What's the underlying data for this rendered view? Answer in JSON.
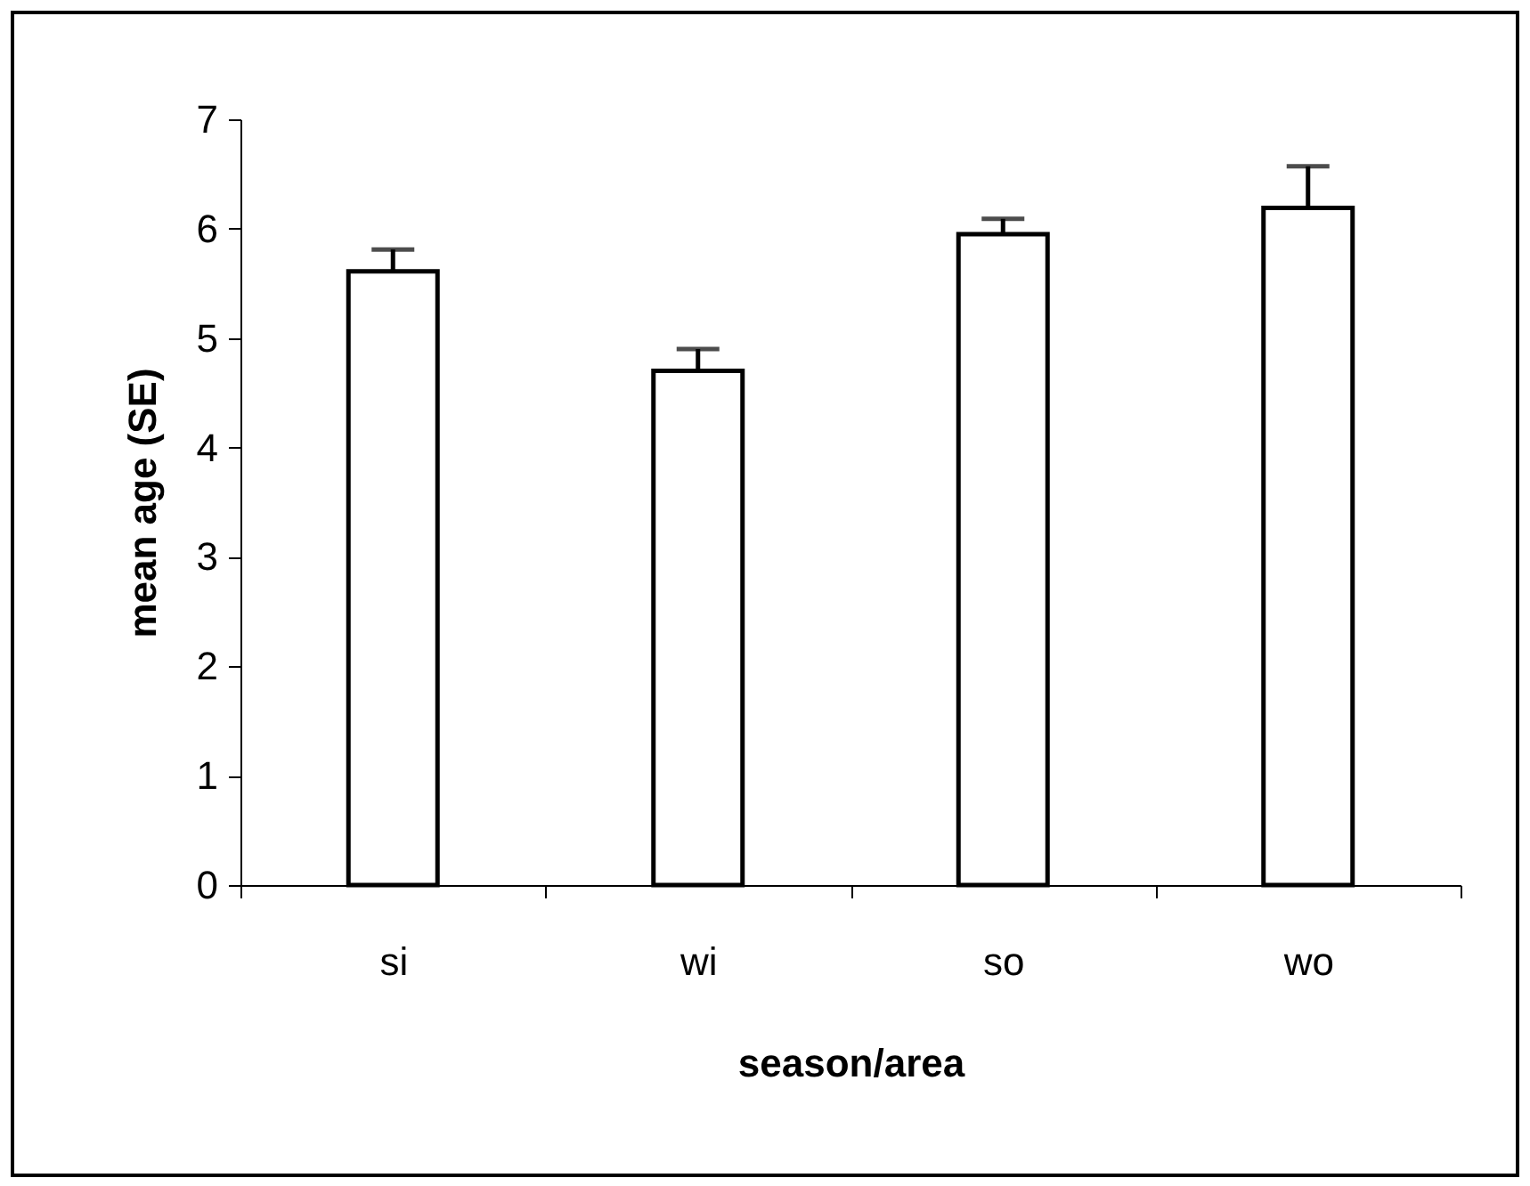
{
  "chart_data": {
    "type": "bar",
    "xlabel": "season/area",
    "ylabel": "mean age (SE)",
    "categories": [
      "si",
      "wi",
      "so",
      "wo"
    ],
    "values": [
      5.61,
      4.7,
      5.95,
      6.19
    ],
    "color": "#ffffff",
    "errors": [
      [
        5.61,
        5.81
      ],
      [
        4.7,
        4.9
      ],
      [
        5.95,
        6.09
      ],
      [
        6.19,
        6.57
      ]
    ],
    "ylim": [
      0,
      7
    ],
    "yticks": [
      0,
      1,
      2,
      3,
      4,
      5,
      6,
      7
    ],
    "grid": false
  }
}
